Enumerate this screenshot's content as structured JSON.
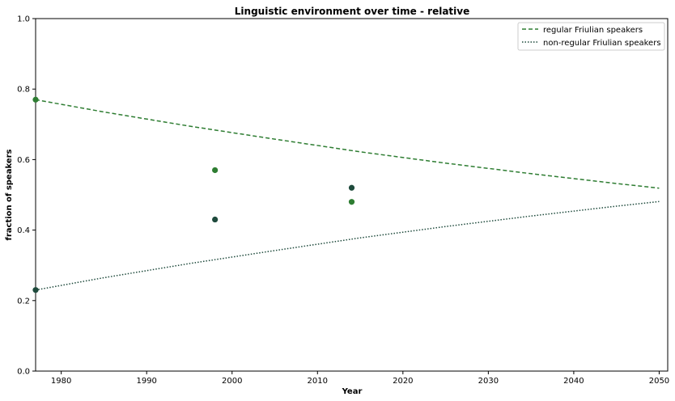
{
  "chart_data": {
    "type": "line",
    "title": "Linguistic environment over time - relative",
    "xlabel": "Year",
    "ylabel": "fraction of speakers",
    "xlim": [
      1977,
      2051
    ],
    "ylim": [
      0.0,
      1.0
    ],
    "x_ticks": [
      "1980",
      "1990",
      "2000",
      "2010",
      "2020",
      "2030",
      "2040",
      "2050"
    ],
    "y_ticks": [
      "0.0",
      "0.2",
      "0.4",
      "0.6",
      "0.8",
      "1.0"
    ],
    "legend_position": "top-right",
    "grid": false,
    "series": [
      {
        "name": "regular Friulian speakers",
        "style": "dashed",
        "color": "#2e7d32",
        "x": [
          1977,
          1985,
          1995,
          2005,
          2015,
          2025,
          2035,
          2045,
          2050
        ],
        "y": [
          0.77,
          0.735,
          0.695,
          0.658,
          0.622,
          0.59,
          0.56,
          0.532,
          0.519
        ]
      },
      {
        "name": "non-regular Friulian speakers",
        "style": "dotted",
        "color": "#1e4a3c",
        "x": [
          1977,
          1985,
          1995,
          2005,
          2015,
          2025,
          2035,
          2045,
          2050
        ],
        "y": [
          0.23,
          0.265,
          0.305,
          0.342,
          0.378,
          0.41,
          0.44,
          0.468,
          0.481
        ]
      }
    ],
    "observations": [
      {
        "x": 1977,
        "y": 0.77,
        "color": "#2e7d32"
      },
      {
        "x": 1998,
        "y": 0.57,
        "color": "#2e7d32"
      },
      {
        "x": 2014,
        "y": 0.48,
        "color": "#2e7d32"
      },
      {
        "x": 1977,
        "y": 0.23,
        "color": "#1e4a3c"
      },
      {
        "x": 1998,
        "y": 0.43,
        "color": "#1e4a3c"
      },
      {
        "x": 2014,
        "y": 0.52,
        "color": "#1e4a3c"
      }
    ]
  }
}
